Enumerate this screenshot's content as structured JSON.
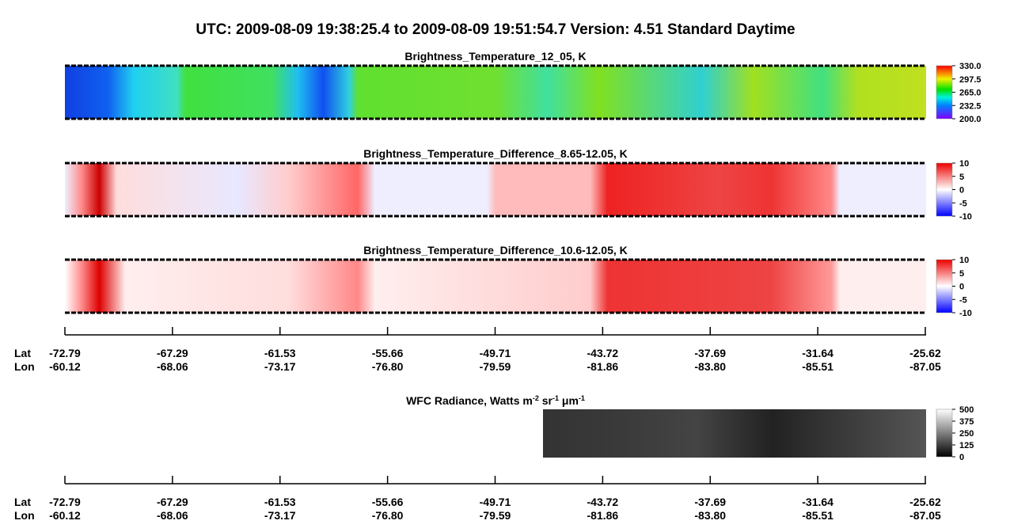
{
  "title": "UTC:  2009-08-09   19:38:25.4  to  2009-08-09   19:51:54.7    Version: 4.51  Standard Daytime",
  "panels": [
    {
      "title": "Brightness_Temperature_12_05, K",
      "colorbar": [
        "330.0",
        "297.5",
        "265.0",
        "232.5",
        "200.0"
      ]
    },
    {
      "title": "Brightness_Temperature_Difference_8.65-12.05, K",
      "colorbar": [
        "10",
        "5",
        "0",
        "-5",
        "-10"
      ]
    },
    {
      "title": "Brightness_Temperature_Difference_10.6-12.05, K",
      "colorbar": [
        "10",
        "5",
        "0",
        "-5",
        "-10"
      ]
    }
  ],
  "wfc": {
    "title_parts": [
      "WFC Radiance, Watts m",
      "-2",
      " sr",
      "-1",
      " μm",
      "-1"
    ],
    "colorbar": [
      "500",
      "375",
      "250",
      "125",
      "0"
    ]
  },
  "axes": [
    {
      "lat_label": "Lat",
      "lon_label": "Lon",
      "lat": [
        "-72.79",
        "-67.29",
        "-61.53",
        "-55.66",
        "-49.71",
        "-43.72",
        "-37.69",
        "-31.64",
        "-25.62"
      ],
      "lon": [
        "-60.12",
        "-68.06",
        "-73.17",
        "-76.80",
        "-79.59",
        "-81.86",
        "-83.80",
        "-85.51",
        "-87.05"
      ]
    },
    {
      "lat_label": "Lat",
      "lon_label": "Lon",
      "lat": [
        "-72.79",
        "-67.29",
        "-61.53",
        "-55.66",
        "-49.71",
        "-43.72",
        "-37.69",
        "-31.64",
        "-25.62"
      ],
      "lon": [
        "-60.12",
        "-68.06",
        "-73.17",
        "-76.80",
        "-79.59",
        "-81.86",
        "-83.80",
        "-85.51",
        "-87.05"
      ]
    }
  ]
}
